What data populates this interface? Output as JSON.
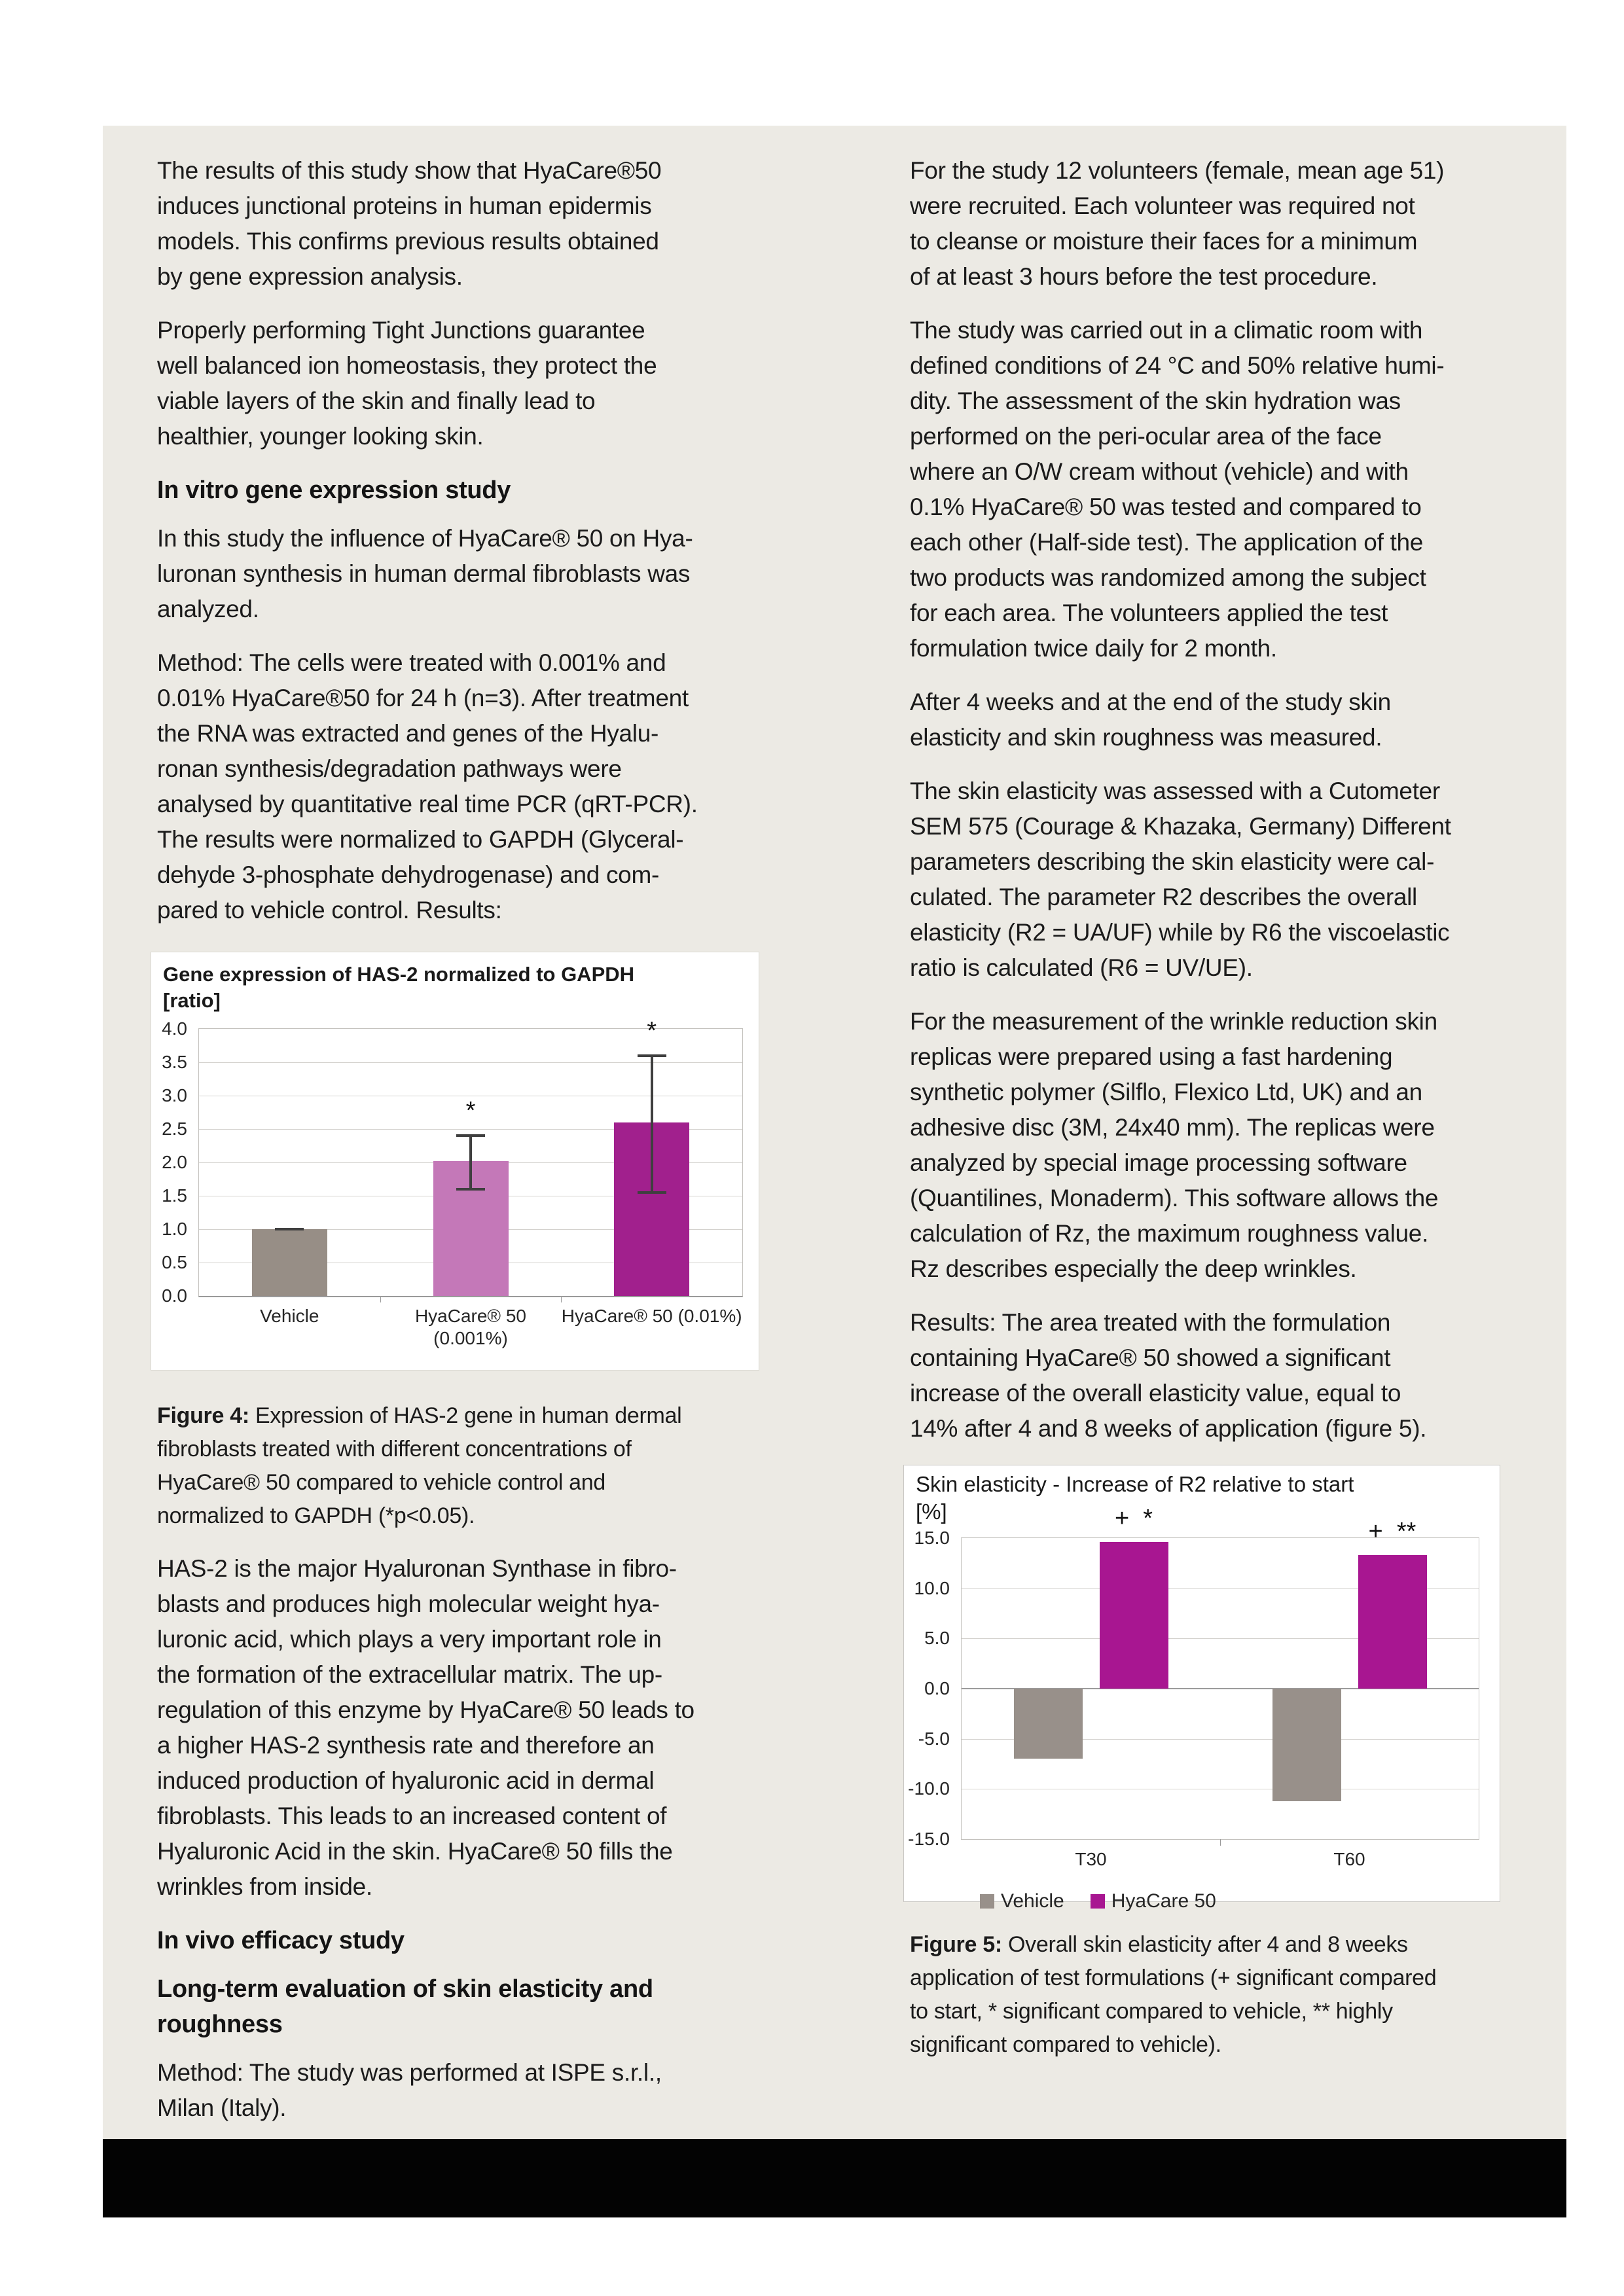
{
  "page": {
    "background": "#ffffff",
    "panel_background": "#ECEAE4",
    "footer_bar_color": "#030303"
  },
  "left_column": {
    "para_results": "The results of this study show that HyaCare®50\ninduces junctional proteins in human epidermis\nmodels. This confirms previous results obtained\nby gene expression analysis.",
    "para_tight_junctions": "Properly performing Tight Junctions guarantee\nwell balanced ion homeostasis, they protect the\nviable layers of the skin and finally lead to\nhealthier, younger looking skin.",
    "heading_in_vitro": "In vitro gene expression study",
    "para_study_influence": "In this study the influence of HyaCare® 50 on Hya-\nluronan synthesis in human dermal fibroblasts was\nanalyzed.",
    "para_method_cells": "Method: The cells were treated with 0.001% and\n0.01% HyaCare®50 for 24 h (n=3). After treatment\nthe RNA was extracted and genes of the Hyalu-\nronan synthesis/degradation pathways were\nanalysed by quantitative real time PCR (qRT-PCR).\nThe results were normalized to GAPDH (Glyceral-\ndehyde 3-phosphate dehydrogenase) and com-\npared to vehicle control. Results:",
    "figure4_caption_label": "Figure 4:",
    "figure4_caption_text": " Expression of HAS-2 gene in human dermal\nfibroblasts treated with different concentrations of\nHyaCare® 50 compared to vehicle control and\nnormalized to GAPDH (*p<0.05).",
    "para_has2": "HAS-2 is the major Hyaluronan Synthase in fibro-\nblasts and produces high molecular weight hya-\nluronic acid, which plays a very important role in\nthe formation of the extracellular matrix. The up-\nregulation of this enzyme by HyaCare® 50 leads to\na higher HAS-2 synthesis rate and therefore an\ninduced production of hyaluronic acid in dermal\nfibroblasts. This leads to an increased content of\nHyaluronic Acid in the skin. HyaCare® 50 fills the\nwrinkles from inside.",
    "heading_in_vivo": "In vivo efficacy study",
    "heading_long_term": "Long-term evaluation of skin elasticity and\nroughness",
    "para_method_ispe": "Method: The study was performed at ISPE s.r.l.,\nMilan (Italy)."
  },
  "right_column": {
    "para_volunteers": "For the study 12 volunteers (female, mean age 51)\nwere recruited.  Each volunteer was required not\nto cleanse or moisture their faces for a minimum\nof at least 3 hours before the test procedure.",
    "para_climatic": "The study was carried out in a climatic room with\ndefined conditions of 24 °C and 50% relative humi-\ndity. The assessment of the skin hydration was\nperformed on the peri-ocular area of the face\nwhere an O/W cream without (vehicle) and with\n0.1% HyaCare® 50 was tested and compared to\neach other (Half-side test). The application of the\ntwo products was randomized among the subject\nfor each area. The volunteers applied the test\nformulation twice daily for 2 month.",
    "para_after_4_weeks": "After 4 weeks and at the end of the study skin\nelasticity and skin roughness was measured.",
    "para_cutometer": "The skin elasticity was assessed with a Cutometer\nSEM  575 (Courage & Khazaka, Germany) Different\nparameters describing the skin elasticity were cal-\nculated. The parameter R2 describes the overall\nelasticity (R2 = UA/UF) while by R6 the viscoelastic\nratio is calculated (R6 = UV/UE).",
    "para_wrinkle": "For the measurement of the wrinkle reduction skin\nreplicas were prepared using a fast hardening\nsynthetic polymer (Silflo, Flexico Ltd, UK) and an\nadhesive disc (3M, 24x40 mm). The replicas were\nanalyzed by special image processing software\n(Quantilines, Monaderm). This software allows the\ncalculation of Rz, the maximum roughness value.\nRz describes especially the deep wrinkles.",
    "para_results_fig5": "Results: The area treated with the formulation\ncontaining HyaCare® 50 showed a significant\nincrease of the overall elasticity value, equal to\n14% after 4 and 8 weeks of application (figure 5).",
    "figure5_caption_label": "Figure 5:",
    "figure5_caption_text": " Overall skin elasticity after 4 and 8 weeks\napplication of test formulations (+ significant compared\nto start, * significant compared to vehicle, ** highly\nsignificant compared to vehicle)."
  },
  "chart_data": [
    {
      "id": "figure4",
      "type": "bar",
      "title": "Gene expression of HAS-2 normalized to GAPDH",
      "ylabel_unit": "[ratio]",
      "categories": [
        "Vehicle",
        "HyaCare® 50 (0.001%)",
        "HyaCare® 50 (0.01%)"
      ],
      "values": [
        1.0,
        2.02,
        2.6
      ],
      "errors_low": [
        1.0,
        1.6,
        1.55
      ],
      "errors_high": [
        1.0,
        2.4,
        3.6
      ],
      "bar_colors": [
        "#978E86",
        "#C478B8",
        "#A1208D"
      ],
      "annotations": [
        "",
        "*",
        "*"
      ],
      "ylim": [
        0,
        4
      ],
      "ytick_values": [
        4.0,
        3.5,
        3.0,
        2.5,
        2.0,
        1.5,
        1.0,
        0.5,
        0.0
      ],
      "ytick_labels": [
        "4.0",
        "3.5",
        "3.0",
        "2.5",
        "2.0",
        "1.5",
        "1.0",
        "0.5",
        "0.0"
      ],
      "grid": true,
      "legend_position": "none"
    },
    {
      "id": "figure5",
      "type": "bar",
      "title": "Skin elasticity - Increase of R2 relative to start",
      "ylabel_unit": "[%]",
      "categories": [
        "T30",
        "T60"
      ],
      "series": [
        {
          "name": "Vehicle",
          "color": "#98908A",
          "values": [
            -7.0,
            -11.2
          ]
        },
        {
          "name": "HyaCare 50",
          "color": "#A81691",
          "values": [
            14.6,
            13.3
          ]
        }
      ],
      "annotations_grouped": [
        {
          "category": "T30",
          "series": "HyaCare 50",
          "text": "+  *"
        },
        {
          "category": "T60",
          "series": "HyaCare 50",
          "text": "+  **"
        }
      ],
      "ylim": [
        -15,
        15
      ],
      "ytick_values": [
        15,
        10,
        5,
        0,
        -5,
        -10,
        -15
      ],
      "ytick_labels": [
        "15.0",
        "10.0",
        "5.0",
        "0.0",
        "-5.0",
        "-10.0",
        "-15.0"
      ],
      "grid": true,
      "legend_position": "bottom",
      "legend": [
        "Vehicle",
        "HyaCare 50"
      ]
    }
  ]
}
